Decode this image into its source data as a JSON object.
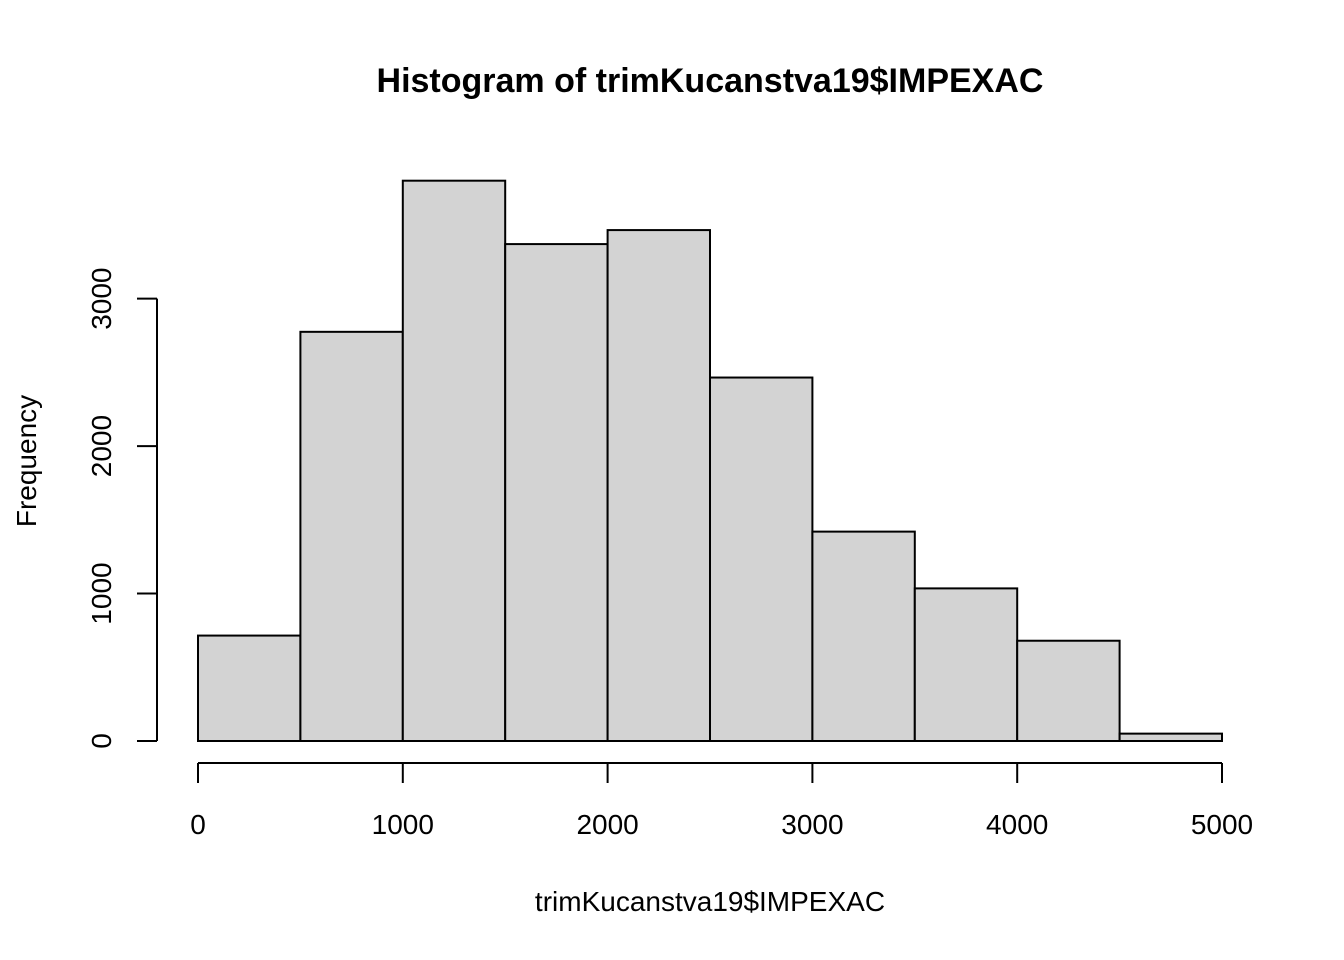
{
  "chart_data": {
    "type": "bar",
    "subtype": "histogram",
    "title": "Histogram of trimKucanstva19$IMPEXAC",
    "xlabel": "trimKucanstva19$IMPEXAC",
    "ylabel": "Frequency",
    "bins": [
      {
        "from": 0,
        "to": 500,
        "count": 715
      },
      {
        "from": 500,
        "to": 1000,
        "count": 2775
      },
      {
        "from": 1000,
        "to": 1500,
        "count": 3800
      },
      {
        "from": 1500,
        "to": 2000,
        "count": 3370
      },
      {
        "from": 2000,
        "to": 2500,
        "count": 3465
      },
      {
        "from": 2500,
        "to": 3000,
        "count": 2465
      },
      {
        "from": 3000,
        "to": 3500,
        "count": 1420
      },
      {
        "from": 3500,
        "to": 4000,
        "count": 1035
      },
      {
        "from": 4000,
        "to": 4500,
        "count": 680
      },
      {
        "from": 4500,
        "to": 5000,
        "count": 50
      }
    ],
    "xlim": [
      0,
      5000
    ],
    "ylim": [
      0,
      3800
    ],
    "x_ticks": [
      0,
      1000,
      2000,
      3000,
      4000,
      5000
    ],
    "x_tick_labels": [
      "0",
      "1000",
      "2000",
      "3000",
      "4000",
      "5000"
    ],
    "y_ticks": [
      0,
      1000,
      2000,
      3000
    ],
    "y_tick_labels": [
      "0",
      "1000",
      "2000",
      "3000"
    ],
    "bar_fill": "#d3d3d3",
    "bar_stroke": "#000000",
    "grid": false,
    "legend": "none"
  }
}
